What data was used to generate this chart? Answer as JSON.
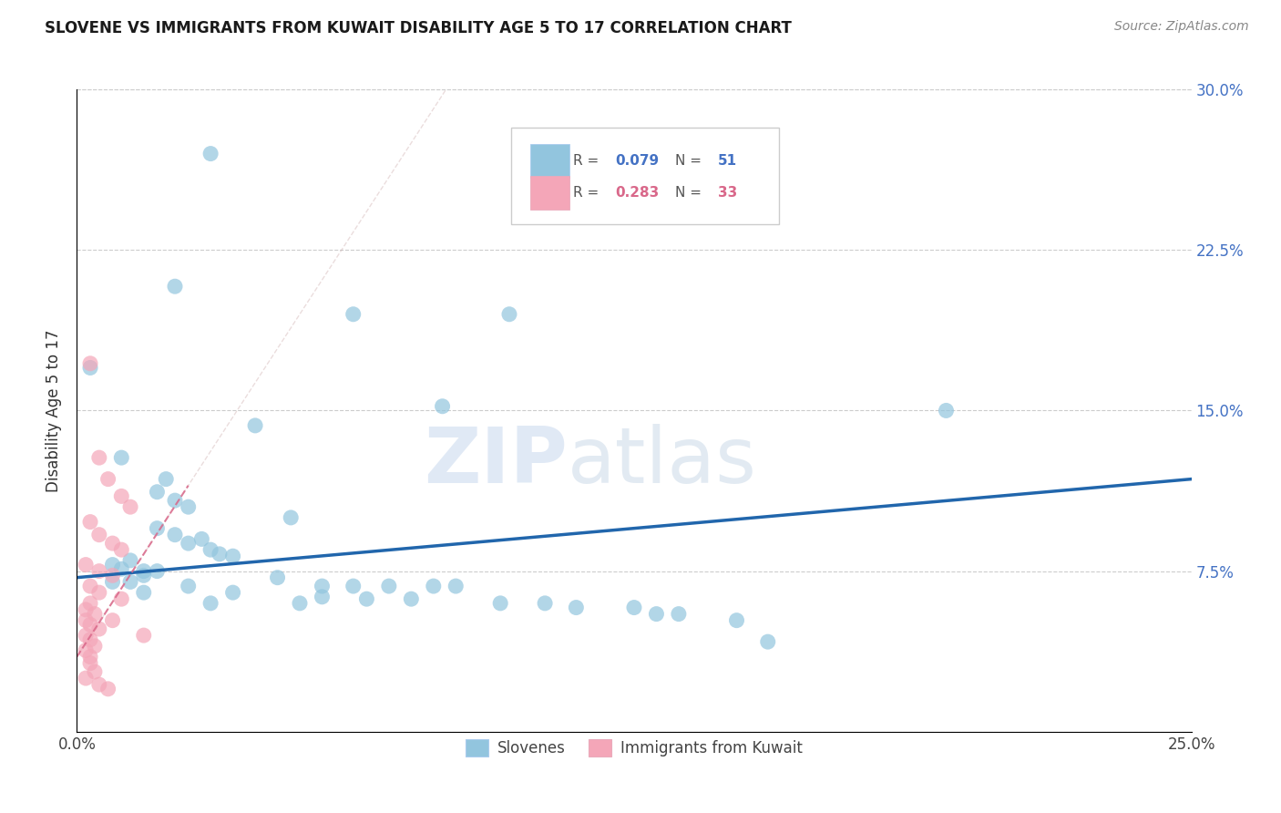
{
  "title": "SLOVENE VS IMMIGRANTS FROM KUWAIT DISABILITY AGE 5 TO 17 CORRELATION CHART",
  "source": "Source: ZipAtlas.com",
  "ylabel": "Disability Age 5 to 17",
  "xlim": [
    0.0,
    0.25
  ],
  "ylim": [
    0.0,
    0.3
  ],
  "xticks": [
    0.0,
    0.05,
    0.1,
    0.15,
    0.2,
    0.25
  ],
  "yticks": [
    0.0,
    0.075,
    0.15,
    0.225,
    0.3
  ],
  "legend_R1": "0.079",
  "legend_N1": "51",
  "legend_R2": "0.283",
  "legend_N2": "33",
  "blue_color": "#92c5de",
  "pink_color": "#f4a6b8",
  "line_blue": "#2166ac",
  "line_pink": "#d9688a",
  "watermark_zip": "ZIP",
  "watermark_atlas": "atlas",
  "blue_scatter": [
    [
      0.03,
      0.27
    ],
    [
      0.022,
      0.208
    ],
    [
      0.062,
      0.195
    ],
    [
      0.097,
      0.195
    ],
    [
      0.003,
      0.17
    ],
    [
      0.082,
      0.152
    ],
    [
      0.04,
      0.143
    ],
    [
      0.01,
      0.128
    ],
    [
      0.02,
      0.118
    ],
    [
      0.018,
      0.112
    ],
    [
      0.022,
      0.108
    ],
    [
      0.025,
      0.105
    ],
    [
      0.048,
      0.1
    ],
    [
      0.018,
      0.095
    ],
    [
      0.022,
      0.092
    ],
    [
      0.028,
      0.09
    ],
    [
      0.025,
      0.088
    ],
    [
      0.03,
      0.085
    ],
    [
      0.032,
      0.083
    ],
    [
      0.035,
      0.082
    ],
    [
      0.012,
      0.08
    ],
    [
      0.008,
      0.078
    ],
    [
      0.01,
      0.076
    ],
    [
      0.015,
      0.075
    ],
    [
      0.018,
      0.075
    ],
    [
      0.015,
      0.073
    ],
    [
      0.045,
      0.072
    ],
    [
      0.008,
      0.07
    ],
    [
      0.012,
      0.07
    ],
    [
      0.025,
      0.068
    ],
    [
      0.055,
      0.068
    ],
    [
      0.062,
      0.068
    ],
    [
      0.07,
      0.068
    ],
    [
      0.08,
      0.068
    ],
    [
      0.085,
      0.068
    ],
    [
      0.015,
      0.065
    ],
    [
      0.035,
      0.065
    ],
    [
      0.055,
      0.063
    ],
    [
      0.065,
      0.062
    ],
    [
      0.075,
      0.062
    ],
    [
      0.03,
      0.06
    ],
    [
      0.05,
      0.06
    ],
    [
      0.095,
      0.06
    ],
    [
      0.105,
      0.06
    ],
    [
      0.112,
      0.058
    ],
    [
      0.125,
      0.058
    ],
    [
      0.13,
      0.055
    ],
    [
      0.135,
      0.055
    ],
    [
      0.148,
      0.052
    ],
    [
      0.155,
      0.042
    ],
    [
      0.195,
      0.15
    ]
  ],
  "pink_scatter": [
    [
      0.003,
      0.172
    ],
    [
      0.005,
      0.128
    ],
    [
      0.007,
      0.118
    ],
    [
      0.01,
      0.11
    ],
    [
      0.012,
      0.105
    ],
    [
      0.003,
      0.098
    ],
    [
      0.005,
      0.092
    ],
    [
      0.008,
      0.088
    ],
    [
      0.01,
      0.085
    ],
    [
      0.002,
      0.078
    ],
    [
      0.005,
      0.075
    ],
    [
      0.008,
      0.073
    ],
    [
      0.003,
      0.068
    ],
    [
      0.005,
      0.065
    ],
    [
      0.01,
      0.062
    ],
    [
      0.003,
      0.06
    ],
    [
      0.002,
      0.057
    ],
    [
      0.004,
      0.055
    ],
    [
      0.002,
      0.052
    ],
    [
      0.003,
      0.05
    ],
    [
      0.005,
      0.048
    ],
    [
      0.002,
      0.045
    ],
    [
      0.003,
      0.043
    ],
    [
      0.004,
      0.04
    ],
    [
      0.002,
      0.038
    ],
    [
      0.003,
      0.035
    ],
    [
      0.003,
      0.032
    ],
    [
      0.004,
      0.028
    ],
    [
      0.002,
      0.025
    ],
    [
      0.005,
      0.022
    ],
    [
      0.007,
      0.02
    ],
    [
      0.008,
      0.052
    ],
    [
      0.015,
      0.045
    ]
  ],
  "blue_line_x": [
    0.0,
    0.25
  ],
  "blue_line_y": [
    0.072,
    0.118
  ],
  "pink_line_x": [
    0.0,
    0.025
  ],
  "pink_line_y": [
    0.04,
    0.11
  ]
}
